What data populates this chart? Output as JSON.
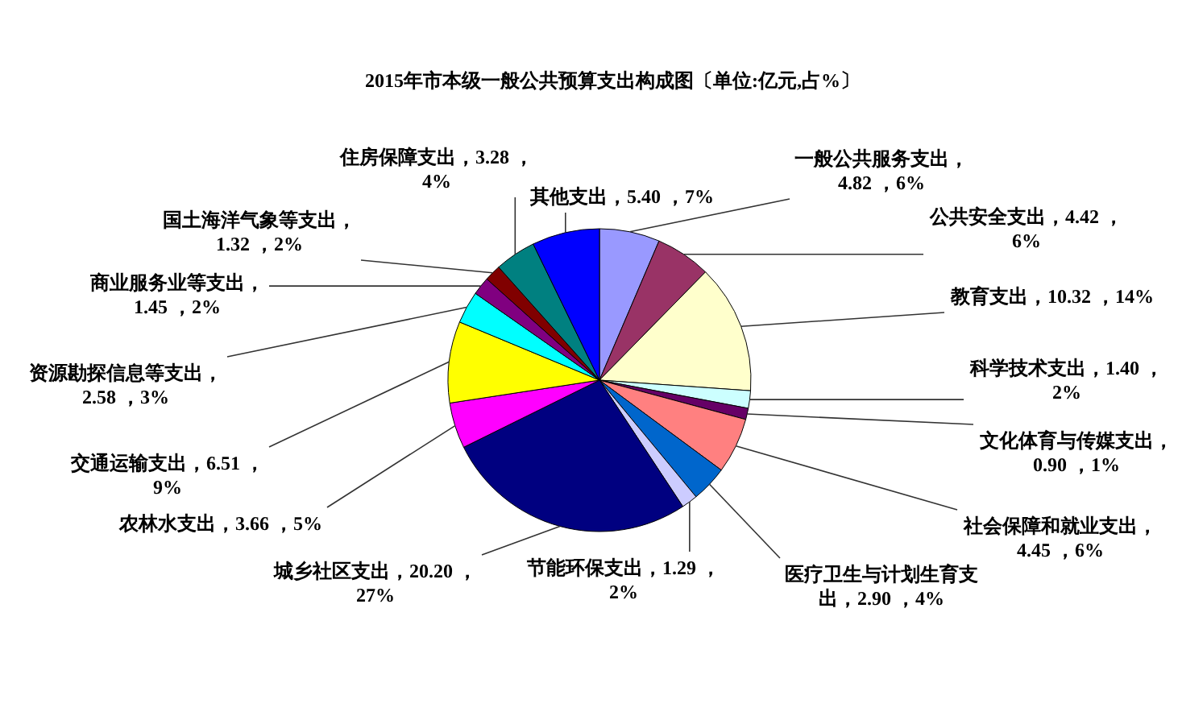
{
  "chart_data": {
    "type": "pie",
    "title": "2015年市本级一般公共预算支出构成图〔单位:亿元,占%〕",
    "categories": [
      "一般公共服务支出",
      "公共安全支出",
      "教育支出",
      "科学技术支出",
      "文化体育与传媒支出",
      "社会保障和就业支出",
      "医疗卫生与计划生育支出",
      "节能环保支出",
      "城乡社区支出",
      "农林水支出",
      "交通运输支出",
      "资源勘探信息等支出",
      "商业服务业等支出",
      "国土海洋气象等支出",
      "住房保障支出",
      "其他支出"
    ],
    "values": [
      4.82,
      4.42,
      10.32,
      1.4,
      0.9,
      4.45,
      2.9,
      1.29,
      20.2,
      3.66,
      6.51,
      2.58,
      1.45,
      1.32,
      3.28,
      5.4
    ],
    "colors": [
      "#9999ff",
      "#993366",
      "#ffffcc",
      "#ccffff",
      "#660066",
      "#ff8080",
      "#0066cc",
      "#ccccff",
      "#000080",
      "#ff00ff",
      "#ffff00",
      "#00ffff",
      "#800080",
      "#800000",
      "#008080",
      "#0000ff"
    ],
    "value_labels": [
      "，4.82 ，6%",
      "，4.42 ，6%",
      "，10.32 ，14%",
      "，1.40 ，2%",
      "，0.90 ，1%",
      "，4.45 ，6%",
      "，2.90 ，4%",
      "，1.29 ，2%",
      "，20.20 ，27%",
      "，3.66 ，5%",
      "，6.51 ，9%",
      "，2.58 ，3%",
      "，1.45 ，2%",
      "，1.32 ，2%",
      "，3.28 ，4%",
      "，5.40 ，7%"
    ]
  }
}
